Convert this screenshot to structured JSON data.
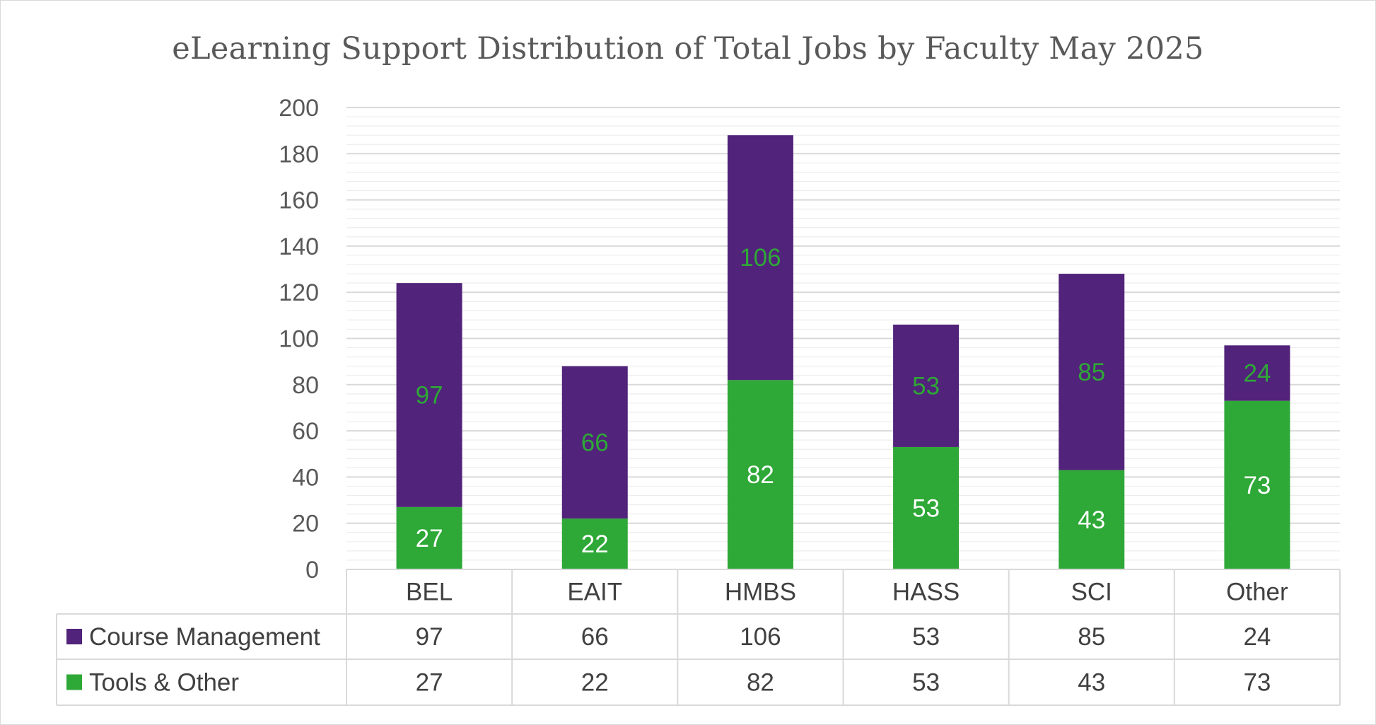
{
  "chart_data": {
    "type": "bar",
    "stacked": true,
    "title": "eLearning Support Distribution of Total Jobs by Faculty May 2025",
    "categories": [
      "BEL",
      "EAIT",
      "HMBS",
      "HASS",
      "SCI",
      "Other"
    ],
    "series": [
      {
        "name": "Tools & Other",
        "color": "#2ea836",
        "label_color": "#ffffff",
        "values": [
          27,
          22,
          82,
          53,
          43,
          73
        ]
      },
      {
        "name": "Course Management",
        "color": "#51237a",
        "label_color": "#2ea836",
        "values": [
          97,
          66,
          106,
          53,
          85,
          24
        ]
      }
    ],
    "yticks": [
      0,
      20,
      40,
      60,
      80,
      100,
      120,
      140,
      160,
      180,
      200
    ],
    "ylim": [
      0,
      200
    ],
    "grid": true,
    "data_table": true,
    "table_row_order": [
      "Course Management",
      "Tools & Other"
    ]
  }
}
